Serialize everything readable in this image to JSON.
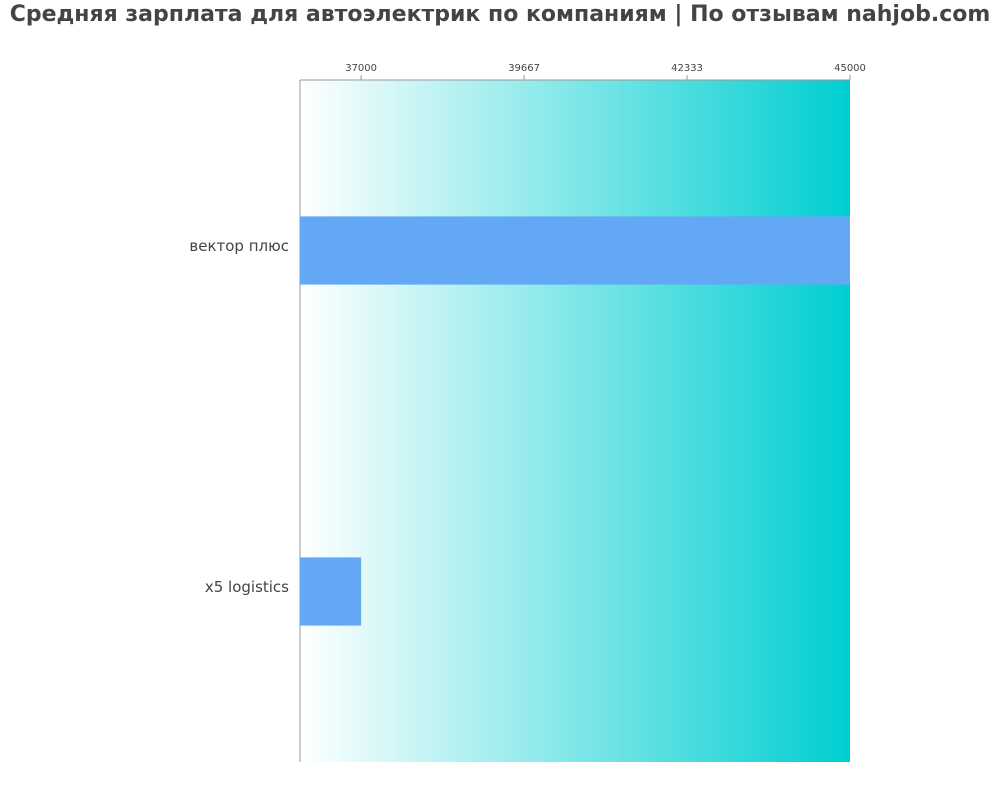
{
  "chart_data": {
    "type": "barh",
    "title": "Средняя зарплата для автоэлектрик по компаниям  | По отзывам nahjob.com",
    "categories": [
      "вектор плюс",
      "x5 logistics"
    ],
    "values": [
      45000,
      37000
    ],
    "color": "#63a8f5",
    "xlim": [
      36000,
      45000
    ],
    "xticks": [
      37000,
      39667,
      42333,
      45000
    ]
  }
}
